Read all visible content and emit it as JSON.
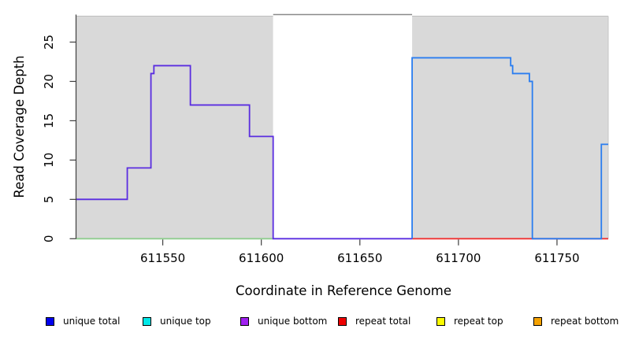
{
  "chart_data": {
    "type": "line",
    "subtype": "step-coverage-plot",
    "title": "",
    "xlabel": "Coordinate in Reference Genome",
    "ylabel": "Read Coverage Depth",
    "xlim": [
      611506,
      611776
    ],
    "ylim": [
      0,
      28.5
    ],
    "x_ticks": [
      611550,
      611600,
      611650,
      611700,
      611750
    ],
    "y_ticks": [
      0,
      5,
      10,
      15,
      20,
      25
    ],
    "grid": false,
    "legend_position": "bottom",
    "background_regions": [
      {
        "name": "shaded-region-left",
        "x1": 611506,
        "x2": 611606,
        "fill": "#d9d9d9"
      },
      {
        "name": "unshaded-region-middle",
        "x1": 611606,
        "x2": 611676.5,
        "fill": "#ffffff"
      },
      {
        "name": "shaded-region-right",
        "x1": 611676.5,
        "x2": 611776,
        "fill": "#d9d9d9"
      }
    ],
    "series": [
      {
        "name": "baseline-left-zero",
        "color": "#8fcd8f",
        "rise_from_zero": false,
        "steps": [
          [
            611506,
            611606,
            0
          ]
        ]
      },
      {
        "name": "baseline-right-zero",
        "color": "#f03333",
        "rise_from_zero": false,
        "steps": [
          [
            611676.5,
            611776,
            0
          ]
        ]
      },
      {
        "name": "unique-coverage-left-block",
        "color": "#5a2de0",
        "rise_from_zero": false,
        "steps": [
          [
            611506,
            611532,
            5
          ],
          [
            611532,
            611544,
            9
          ],
          [
            611544,
            611545.5,
            21
          ],
          [
            611545.5,
            611564,
            22
          ],
          [
            611564,
            611594,
            17
          ],
          [
            611594,
            611606,
            13
          ],
          [
            611606,
            611676.5,
            0
          ]
        ]
      },
      {
        "name": "unique-coverage-right-block",
        "color": "#2a7df0",
        "rise_from_zero": true,
        "steps": [
          [
            611676.5,
            611726.5,
            23
          ],
          [
            611726.5,
            611727.5,
            22
          ],
          [
            611727.5,
            611736,
            21
          ],
          [
            611736,
            611737.5,
            20
          ],
          [
            611737.5,
            611772.5,
            0
          ],
          [
            611772.5,
            611776,
            12
          ]
        ]
      }
    ],
    "legend": [
      {
        "label": "unique total",
        "color": "#0000ee"
      },
      {
        "label": "unique top",
        "color": "#00e8e8"
      },
      {
        "label": "unique bottom",
        "color": "#a020f0"
      },
      {
        "label": "repeat total",
        "color": "#ee0000"
      },
      {
        "label": "repeat top",
        "color": "#fbfb00"
      },
      {
        "label": "repeat bottom",
        "color": "#f5a200"
      }
    ]
  }
}
